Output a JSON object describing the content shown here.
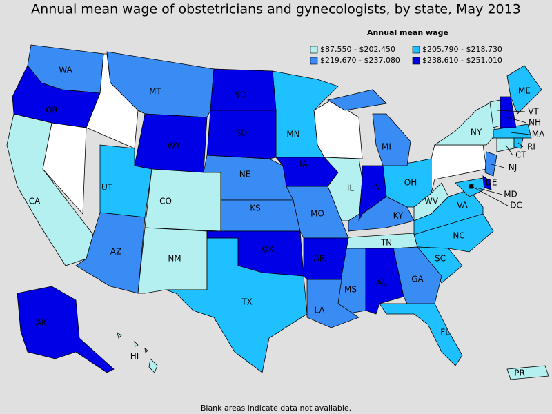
{
  "title": "Annual mean wage of obstetricians and gynecologists, by state, May 2013",
  "legend": {
    "title": "Annual mean wage",
    "items": [
      {
        "label": "$87,550 - $202,450",
        "color": "#b4f0f0",
        "states": [
          "CA",
          "CO",
          "NM",
          "IL",
          "TN",
          "WV",
          "NY",
          "VT",
          "CT",
          "HI",
          "PR"
        ]
      },
      {
        "label": "$205,790 - $218,730",
        "color": "#1ec0ff",
        "states": [
          "MN",
          "UT",
          "TX",
          "OH",
          "VA",
          "NC",
          "SC",
          "FL",
          "ME",
          "MA",
          "RI",
          "MD",
          "DC"
        ]
      },
      {
        "label": "$219,670 - $237,080",
        "color": "#3a8cf5",
        "states": [
          "WA",
          "MT",
          "NE",
          "KS",
          "MO",
          "AZ",
          "MI",
          "KY",
          "MS",
          "LA",
          "GA",
          "NJ"
        ]
      },
      {
        "label": "$238,610 - $251,010",
        "color": "#0000e6",
        "states": [
          "OR",
          "WY",
          "ND",
          "SD",
          "IA",
          "OK",
          "AR",
          "IN",
          "AL",
          "AK",
          "NH",
          "DE"
        ]
      }
    ]
  },
  "footnote": "Blank areas indicate data not available."
}
